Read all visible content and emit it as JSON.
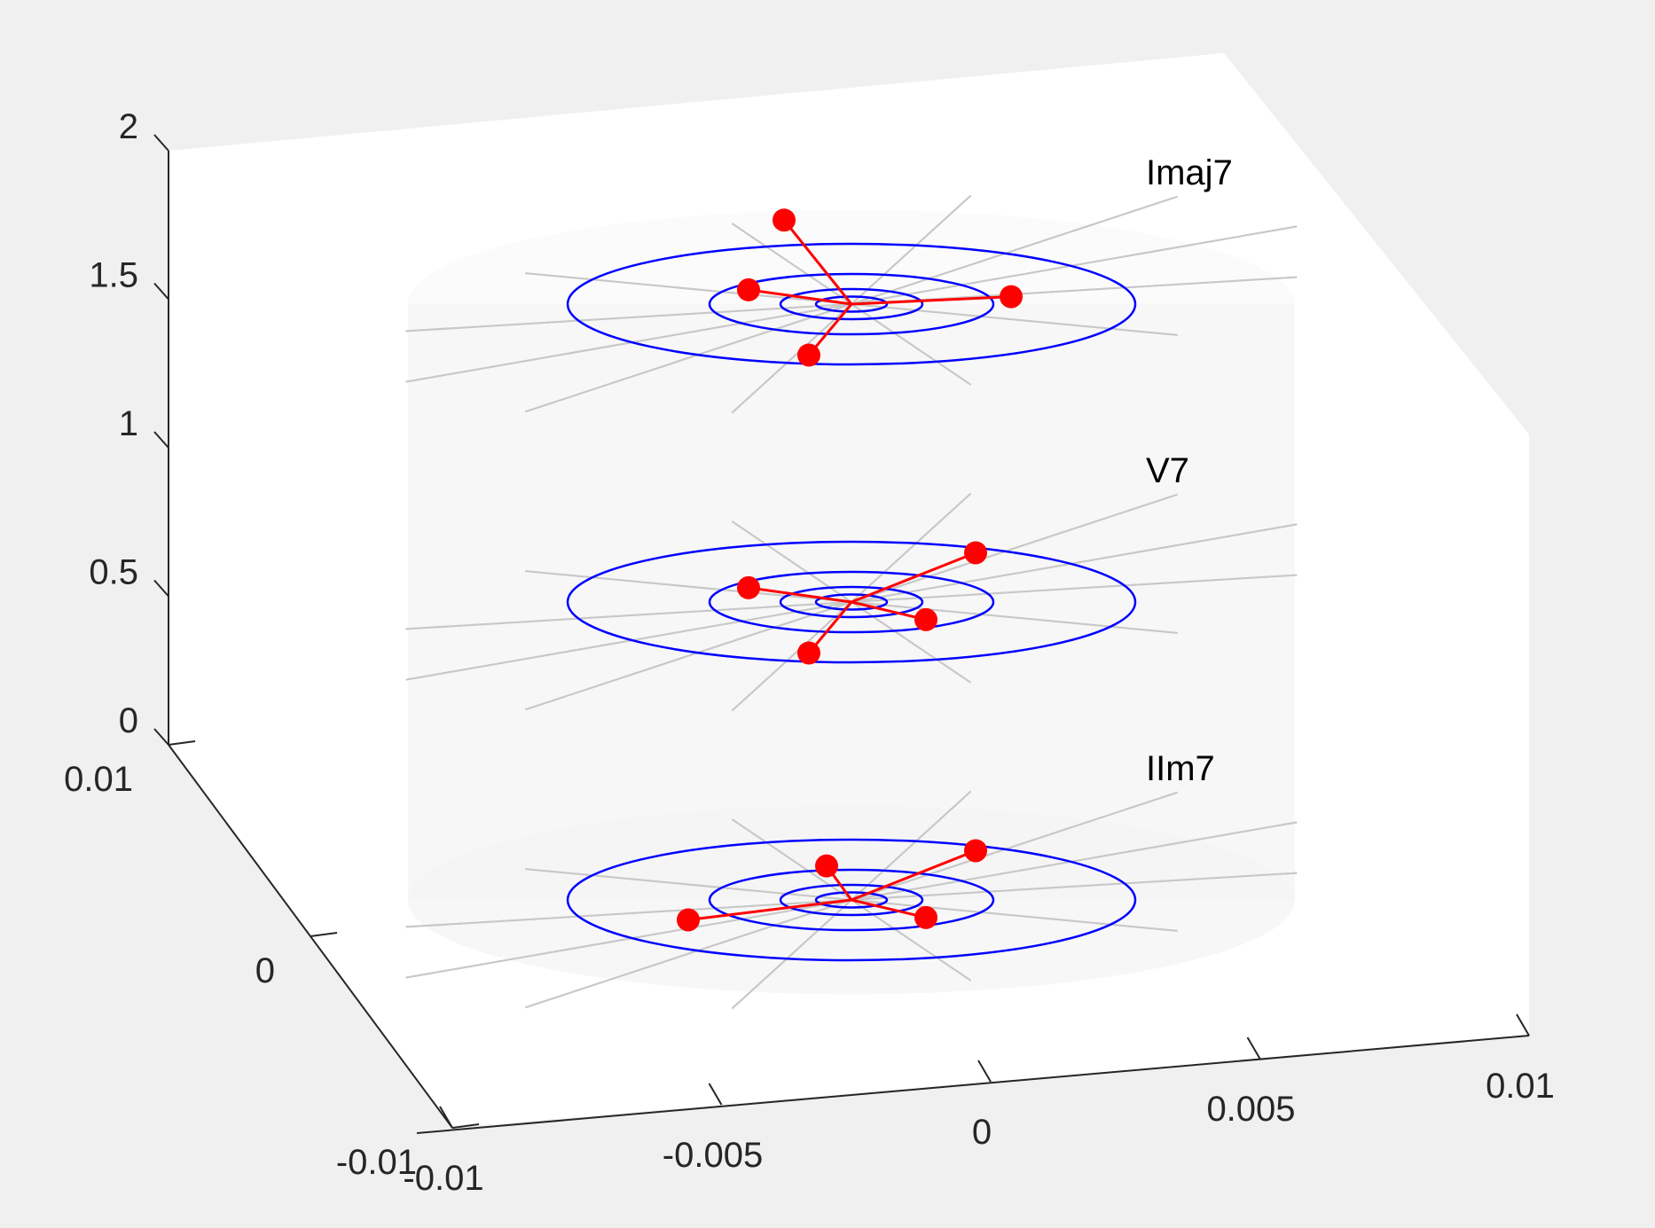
{
  "chart_data": {
    "type": "scatter",
    "projection": "3d",
    "colors": {
      "figure_background": "#f0f0f0",
      "axes_background": "#ffffff",
      "cylinder_fill": "#f0f0f0",
      "grid": "#c8c8c8",
      "rings": "#0000ff",
      "chord_points": "#ff0000",
      "axis": "#262626"
    },
    "axes": {
      "x": {
        "lim": [
          -0.01,
          0.01
        ],
        "ticks": [
          -0.01,
          -0.005,
          0,
          0.005,
          0.01
        ],
        "tick_labels": [
          "-0.01",
          "-0.005",
          "0",
          "0.005",
          "0.01"
        ]
      },
      "y": {
        "lim": [
          -0.01,
          0.01
        ],
        "ticks": [
          -0.01,
          0,
          0.01
        ],
        "tick_labels": [
          "-0.01",
          "0",
          "0.01"
        ]
      },
      "z": {
        "lim": [
          0,
          2
        ],
        "ticks": [
          0,
          0.5,
          1,
          1.5,
          2
        ],
        "tick_labels": [
          "0",
          "0.5",
          "1",
          "1.5",
          "2"
        ]
      }
    },
    "layers": [
      {
        "name": "IIm7",
        "z": 0,
        "ring_radii": [
          0.001,
          0.002,
          0.004,
          0.008
        ],
        "points": [
          {
            "x": -0.0007,
            "y": 0.0049
          },
          {
            "x": 0.0035,
            "y": 0.0046
          },
          {
            "x": -0.0046,
            "y": -0.0001
          },
          {
            "x": 0.0021,
            "y": -0.0035
          }
        ]
      },
      {
        "name": "V7",
        "z": 1,
        "ring_radii": [
          0.001,
          0.002,
          0.004,
          0.008
        ],
        "points": [
          {
            "x": -0.0029,
            "y": 0.0035
          },
          {
            "x": 0.0035,
            "y": 0.0046
          },
          {
            "x": -0.0012,
            "y": -0.0061
          },
          {
            "x": 0.0021,
            "y": -0.0035
          }
        ]
      },
      {
        "name": "Imaj7",
        "z": 2,
        "ring_radii": [
          0.001,
          0.002,
          0.004,
          0.008
        ],
        "points": [
          {
            "x": -0.0019,
            "y": 0.0122
          },
          {
            "x": -0.0029,
            "y": 0.0035
          },
          {
            "x": 0.0045,
            "y": -0.0015
          },
          {
            "x": -0.0012,
            "y": -0.0061
          }
        ]
      }
    ],
    "grid": true
  }
}
